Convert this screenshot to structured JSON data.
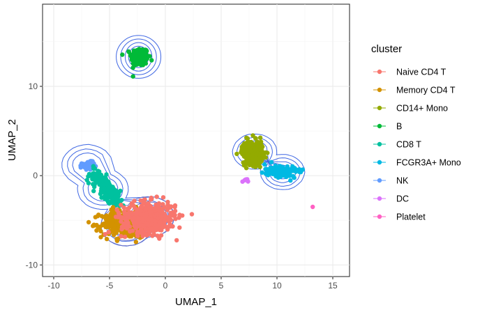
{
  "chart_data": {
    "type": "scatter",
    "title": "",
    "xlabel": "UMAP_1",
    "ylabel": "UMAP_2",
    "xlim": [
      -11,
      16.5
    ],
    "ylim": [
      -11.3,
      19.2
    ],
    "xticks": [
      -10,
      -5,
      0,
      5,
      10,
      15
    ],
    "yticks": [
      -10,
      0,
      10
    ],
    "grid": true,
    "legend_title": "cluster",
    "legend_position": "right",
    "contour_color": "#3f67e3",
    "series": [
      {
        "name": "Naive CD4 T",
        "color": "#F8766D",
        "center": [
          -1.5,
          -4.7
        ],
        "spread": [
          2.2,
          1.6
        ],
        "n": 420
      },
      {
        "name": "Memory CD4 T",
        "color": "#D39200",
        "center": [
          -3.6,
          -5.4
        ],
        "spread": [
          1.9,
          1.4
        ],
        "n": 360
      },
      {
        "name": "CD14+ Mono",
        "color": "#93AA00",
        "center": [
          7.8,
          2.6
        ],
        "spread": [
          0.85,
          1.2
        ],
        "n": 320
      },
      {
        "name": "B",
        "color": "#00BA38",
        "center": [
          -2.3,
          13.3
        ],
        "spread": [
          0.7,
          0.95
        ],
        "n": 220
      },
      {
        "name": "CD8 T",
        "color": "#00C19F",
        "center": [
          -5.6,
          -1.3
        ],
        "spread": [
          0.9,
          1.5
        ],
        "n": 200
      },
      {
        "name": "FCGR3A+ Mono",
        "color": "#00B9E3",
        "center": [
          10.3,
          0.5
        ],
        "spread": [
          0.8,
          0.4
        ],
        "n": 110
      },
      {
        "name": "NK",
        "color": "#619CFF",
        "center": [
          -6.9,
          1.1
        ],
        "spread": [
          0.5,
          0.4
        ],
        "n": 80
      },
      {
        "name": "DC",
        "color": "#DB72FB",
        "center": [
          7.2,
          -0.6
        ],
        "spread": [
          0.3,
          0.3
        ],
        "n": 6
      },
      {
        "name": "Platelet",
        "color": "#FF61C3",
        "center": [
          13.2,
          -3.5
        ],
        "spread": [
          0.0,
          0.0
        ],
        "n": 1
      }
    ],
    "density_contours": [
      {
        "group": "B",
        "center": [
          -2.4,
          13.3
        ],
        "radii": [
          [
            2.0,
            2.4
          ],
          [
            1.6,
            2.0
          ],
          [
            1.2,
            1.6
          ],
          [
            0.9,
            1.2
          ],
          [
            0.6,
            0.8
          ],
          [
            0.35,
            0.45
          ]
        ]
      },
      {
        "group": "Mono",
        "points": [
          [
            8,
            2.7
          ],
          [
            10.5,
            0.4
          ]
        ],
        "levels": [
          2.0,
          1.6,
          1.2,
          0.8,
          0.45
        ]
      },
      {
        "group": "T/NK",
        "points": [
          [
            -7,
            1.2
          ],
          [
            -5.6,
            -1.5
          ],
          [
            -1.5,
            -4.6
          ],
          [
            -3.5,
            -5.6
          ]
        ],
        "levels": [
          2.3,
          1.8,
          1.35,
          0.95,
          0.7,
          0.5,
          0.3
        ]
      }
    ]
  }
}
